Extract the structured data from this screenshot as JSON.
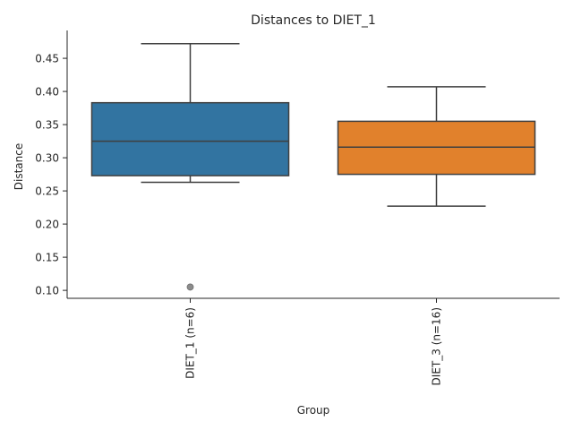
{
  "chart_data": {
    "type": "box",
    "title": "Distances to DIET_1",
    "xlabel": "Group",
    "ylabel": "Distance",
    "ylim": [
      0.088,
      0.492
    ],
    "yticks": [
      0.1,
      0.15,
      0.2,
      0.25,
      0.3,
      0.35,
      0.4,
      0.45
    ],
    "ytick_labels": [
      "0.10",
      "0.15",
      "0.20",
      "0.25",
      "0.30",
      "0.35",
      "0.40",
      "0.45"
    ],
    "grid": false,
    "categories": [
      "DIET_1 (n=6)",
      "DIET_3 (n=16)"
    ],
    "boxes": [
      {
        "category": "DIET_1 (n=6)",
        "whisker_low": 0.263,
        "q1": 0.273,
        "median": 0.325,
        "q3": 0.383,
        "whisker_high": 0.472,
        "outliers": [
          0.105
        ],
        "color": "#3274a1"
      },
      {
        "category": "DIET_3 (n=16)",
        "whisker_low": 0.227,
        "q1": 0.275,
        "median": 0.316,
        "q3": 0.355,
        "whisker_high": 0.407,
        "outliers": [],
        "color": "#e1812c"
      }
    ]
  }
}
